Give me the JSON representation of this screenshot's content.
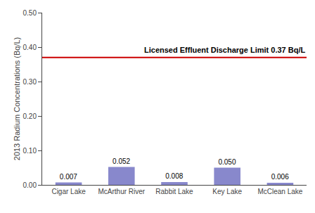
{
  "chart_data": {
    "type": "bar",
    "categories": [
      "Cigar Lake",
      "McArthur River",
      "Rabbit Lake",
      "Key Lake",
      "McClean Lake"
    ],
    "values": [
      0.007,
      0.052,
      0.008,
      0.05,
      0.006
    ],
    "value_labels": [
      "0.007",
      "0.052",
      "0.008",
      "0.050",
      "0.006"
    ],
    "data_labels": true,
    "color": "#8888cc",
    "ylabel": "2013 Radium Concentrations (Bq/L)",
    "ylim": [
      0,
      0.5
    ],
    "yticks": [
      {
        "value": 0.0,
        "label": "0.00"
      },
      {
        "value": 0.1,
        "label": "0.10"
      },
      {
        "value": 0.2,
        "label": "0.20"
      },
      {
        "value": 0.3,
        "label": "0.30"
      },
      {
        "value": 0.4,
        "label": "0.40"
      },
      {
        "value": 0.5,
        "label": "0.50"
      }
    ],
    "reference_line": {
      "value": 0.37,
      "label": "Licensed Effluent Discharge Limit 0.37 Bq/L",
      "color": "#cc0000"
    },
    "grid": false
  }
}
